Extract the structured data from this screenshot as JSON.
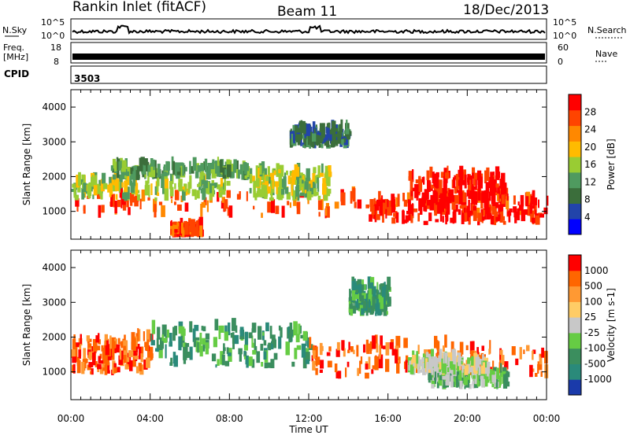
{
  "header": {
    "station": "Rankin Inlet (fitACF)",
    "beam": "Beam 11",
    "date": "18/Dec/2013"
  },
  "strip_panels": {
    "nsky": {
      "label": "N.Sky",
      "ticks": [
        "10^5",
        "10^0"
      ]
    },
    "nsearch": {
      "label": "N.Search",
      "ticks": [
        "10^5",
        "10^0"
      ]
    },
    "freq": {
      "label_line1": "Freq.",
      "label_line2": "[MHz]",
      "ticks": [
        "18",
        "8"
      ]
    },
    "nave": {
      "label": "Nave",
      "ticks": [
        "60",
        "0"
      ]
    },
    "cpid": {
      "label": "CPID",
      "value": "3503"
    }
  },
  "chart_data": [
    {
      "type": "heatmap",
      "name": "power",
      "ylabel": "Slant Range [km]",
      "yticks": [
        "4000",
        "3000",
        "2000",
        "1000"
      ],
      "ylim": [
        200,
        4500
      ],
      "xlim": [
        0,
        24
      ],
      "colorbar": {
        "label": "Power [dB]",
        "ticks": [
          "28",
          "24",
          "20",
          "16",
          "12",
          "8",
          "4"
        ],
        "colors": [
          "#0000ff",
          "#2244aa",
          "#3b6e3b",
          "#4f9a5f",
          "#99cc33",
          "#ffbb00",
          "#ff8800",
          "#ff4400",
          "#ff0000"
        ]
      },
      "bands": [
        {
          "t": [
            0,
            24
          ],
          "r": [
            800,
            1400
          ],
          "level": 7
        },
        {
          "t": [
            0,
            8
          ],
          "r": [
            1300,
            1800
          ],
          "level": 4
        },
        {
          "t": [
            2,
            9
          ],
          "r": [
            1900,
            2200
          ],
          "level": 3
        },
        {
          "t": [
            9,
            13
          ],
          "r": [
            1300,
            2100
          ],
          "level": 4
        },
        {
          "t": [
            15,
            24
          ],
          "r": [
            600,
            1200
          ],
          "level": 8
        },
        {
          "t": [
            17,
            22
          ],
          "r": [
            1200,
            2000
          ],
          "level": 8
        },
        {
          "t": [
            5,
            6.5
          ],
          "r": [
            250,
            450
          ],
          "level": 7
        },
        {
          "t": [
            11,
            14
          ],
          "r": [
            2800,
            3300
          ],
          "level": 2
        }
      ]
    },
    {
      "type": "heatmap",
      "name": "velocity",
      "ylabel": "Slant Range [km]",
      "yticks": [
        "4000",
        "3000",
        "2000",
        "1000"
      ],
      "xticks": [
        "00:00",
        "04:00",
        "08:00",
        "12:00",
        "16:00",
        "20:00",
        "00:00"
      ],
      "xlabel": "Time UT",
      "ylim": [
        200,
        4500
      ],
      "xlim": [
        0,
        24
      ],
      "colorbar": {
        "label": "Velocity [m s-1]",
        "ticks": [
          "1000",
          "500",
          "100",
          "25",
          "-25",
          "-100",
          "-500",
          "-1000"
        ],
        "colors": [
          "#1a3aaa",
          "#2a8a7a",
          "#3b8e5e",
          "#66cc44",
          "#c8c8c8",
          "#ffcc66",
          "#ff9933",
          "#ff6600",
          "#ff0000"
        ]
      },
      "bands": [
        {
          "t": [
            0,
            4
          ],
          "r": [
            900,
            1900
          ],
          "level": 7
        },
        {
          "t": [
            4,
            12
          ],
          "r": [
            1100,
            2200
          ],
          "level": 2
        },
        {
          "t": [
            12,
            24
          ],
          "r": [
            800,
            1700
          ],
          "level": 7
        },
        {
          "t": [
            18,
            22
          ],
          "r": [
            500,
            900
          ],
          "level": 3
        },
        {
          "t": [
            17,
            21
          ],
          "r": [
            900,
            1300
          ],
          "level": 4
        },
        {
          "t": [
            14,
            16
          ],
          "r": [
            2600,
            3400
          ],
          "level": 2
        }
      ]
    }
  ]
}
